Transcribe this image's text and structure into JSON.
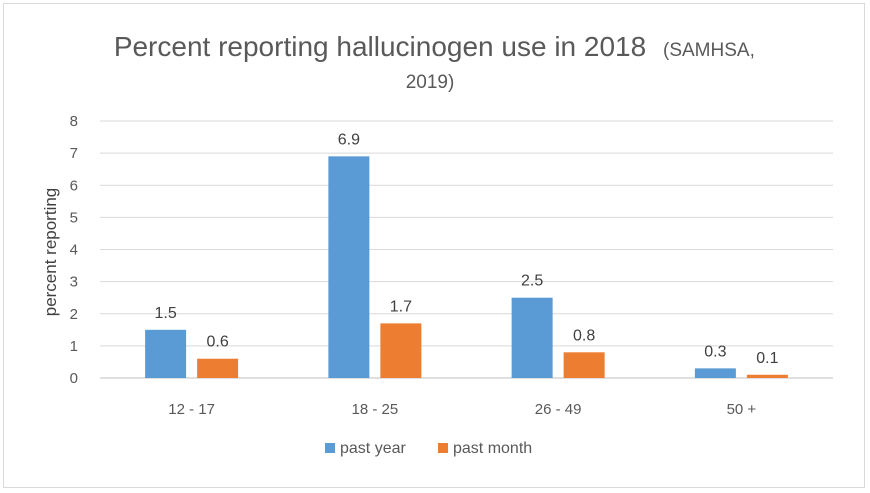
{
  "chart_data": {
    "type": "bar",
    "title": "Percent reporting hallucinogen use in 2018",
    "subtitle": "(SAMHSA, 2019)",
    "xlabel": "",
    "ylabel": "percent reporting",
    "ylim": [
      0,
      8
    ],
    "yticks": [
      0,
      1,
      2,
      3,
      4,
      5,
      6,
      7,
      8
    ],
    "grid": true,
    "legend_position": "bottom",
    "categories": [
      "12 - 17",
      "18 - 25",
      "26 - 49",
      "50 +"
    ],
    "series": [
      {
        "name": "past year",
        "values": [
          1.5,
          6.9,
          2.5,
          0.3
        ],
        "color": "#5b9bd5"
      },
      {
        "name": "past month",
        "values": [
          0.6,
          1.7,
          0.8,
          0.1
        ],
        "color": "#ed7d31"
      }
    ]
  }
}
